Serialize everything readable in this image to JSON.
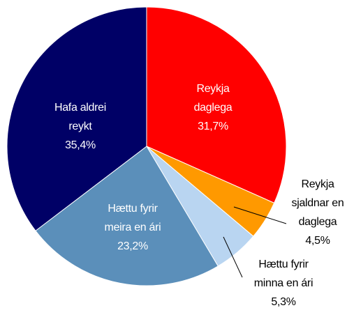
{
  "chart_data": {
    "type": "pie",
    "categories": [
      "Reykja daglega",
      "Reykja sjaldnar en daglega",
      "Hættu fyrir minna en ári",
      "Hættu fyrir meira en ári",
      "Hafa aldrei reykt"
    ],
    "values": [
      31.7,
      4.5,
      5.3,
      23.2,
      35.4
    ],
    "value_labels": [
      "31,7%",
      "4,5%",
      "5,3%",
      "23,2%",
      "35,4%"
    ],
    "colors": [
      "#ff0000",
      "#ff9900",
      "#b9d5f1",
      "#5b8fba",
      "#000066"
    ]
  }
}
